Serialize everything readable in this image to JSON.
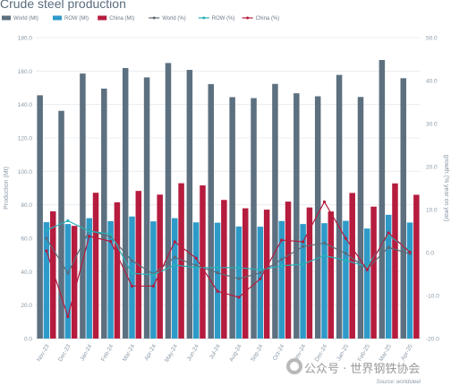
{
  "chart_data": {
    "type": "bar",
    "title": "Crude steel production",
    "ylabel": "Production (Mt)",
    "y2label": "growth (% year on year)",
    "source": "Source: worldsteel",
    "ylim": [
      0,
      180
    ],
    "y2lim": [
      -20,
      50
    ],
    "yticks": [
      "0.0",
      "20.0",
      "40.0",
      "60.0",
      "80.0",
      "100.0",
      "120.0",
      "140.0",
      "160.0",
      "180.0"
    ],
    "y2ticks": [
      "-20.0",
      "-10.0",
      "0.0",
      "10.0",
      "20.0",
      "30.0",
      "40.0",
      "50.0"
    ],
    "grid": true,
    "legend_position": "top",
    "categories": [
      "Nov-23",
      "Dec-23",
      "Jan-24",
      "Feb-24",
      "Mar-24",
      "Apr-24",
      "May-24",
      "Jun-24",
      "Jul-24",
      "Aug-24",
      "Sep-24",
      "Oct-24",
      "Nov-24",
      "Dec-24",
      "Jan-25",
      "Feb-25",
      "Mar-25",
      "Apr-25"
    ],
    "bar_series": [
      {
        "name": "World (Mt)",
        "color": "#5c7080",
        "values": [
          145.5,
          136.2,
          158.5,
          149.5,
          161.8,
          156.2,
          164.8,
          160.7,
          152.2,
          144.4,
          143.8,
          152.3,
          146.7,
          144.9,
          157.7,
          144.5,
          166.6,
          155.7
        ]
      },
      {
        "name": "ROW (Mt)",
        "color": "#2e9ac8",
        "values": [
          69.6,
          68.5,
          72.0,
          70.2,
          73.0,
          70.1,
          72.0,
          69.5,
          69.3,
          67.0,
          66.9,
          70.3,
          68.5,
          69.0,
          70.4,
          65.8,
          74.0,
          69.4
        ]
      },
      {
        "name": "China (Mt)",
        "color": "#b51c3e",
        "values": [
          76.1,
          67.4,
          87.2,
          81.5,
          88.3,
          86.1,
          92.9,
          91.6,
          82.9,
          77.9,
          77.1,
          81.9,
          78.4,
          76.0,
          87.1,
          78.9,
          92.8,
          86.0
        ]
      }
    ],
    "line_series": [
      {
        "name": "World (%)",
        "color": "#5c6a78",
        "values": [
          3.3,
          -4.8,
          5.1,
          3.7,
          -1.9,
          -5.0,
          -1.1,
          -3.0,
          -4.7,
          -6.1,
          -4.7,
          -1.6,
          1.4,
          2.2,
          -0.2,
          -3.8,
          1.2,
          -0.3
        ]
      },
      {
        "name": "ROW (%)",
        "color": "#27b0b8",
        "values": [
          5.2,
          7.4,
          5.0,
          4.3,
          -4.8,
          -5.2,
          -2.9,
          -3.5,
          -3.5,
          -3.5,
          -4.0,
          -3.1,
          -2.7,
          -0.7,
          -1.8,
          -3.3,
          4.0,
          0.5
        ]
      },
      {
        "name": "China (%)",
        "color": "#b51c3e",
        "values": [
          0.4,
          -14.9,
          3.8,
          2.6,
          -7.8,
          -7.8,
          2.5,
          -1.3,
          -9.0,
          -10.4,
          -6.1,
          2.9,
          2.5,
          11.8,
          3.3,
          -4.0,
          4.6,
          0.1
        ]
      }
    ]
  },
  "watermark": "公众号 · 世界钢铁协会"
}
